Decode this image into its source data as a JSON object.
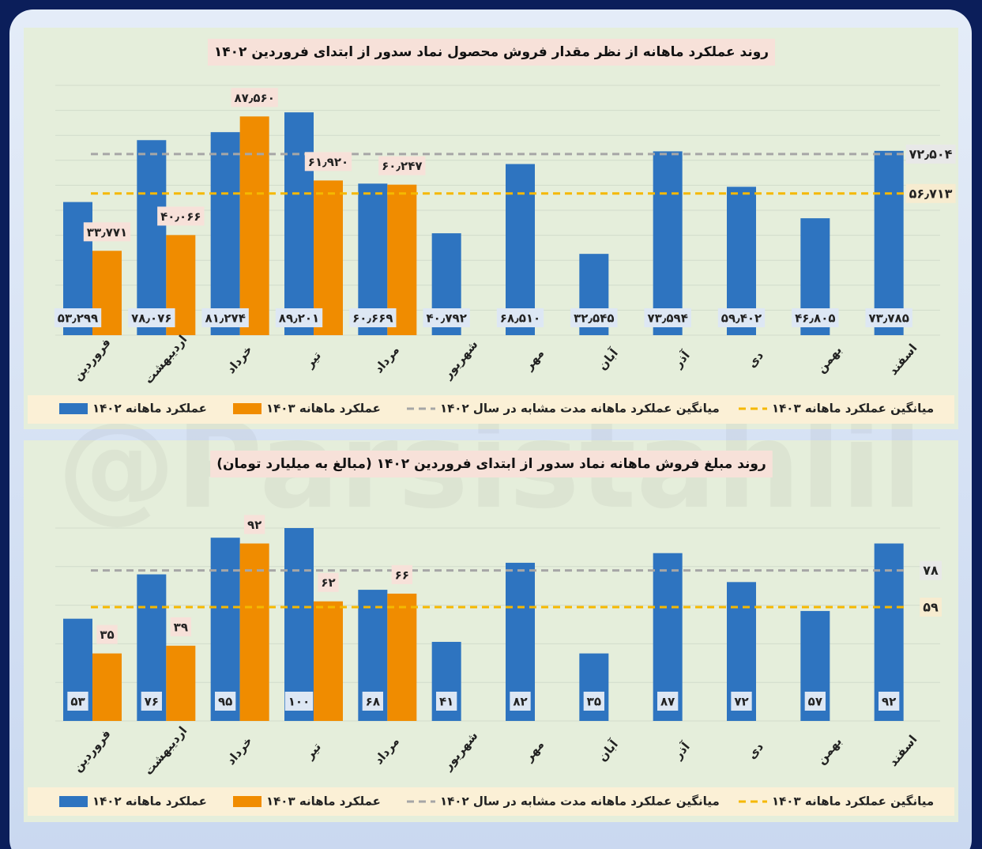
{
  "watermark": "@Parsistahlil",
  "chart_data": [
    {
      "type": "bar",
      "title": "روند عملکرد ماهانه از نظر مقدار فروش محصول نماد سدور از ابتدای فروردین ۱۴۰۲",
      "categories": [
        "فروردین",
        "اردیبهشت",
        "خرداد",
        "تیر",
        "مرداد",
        "شهریور",
        "مهر",
        "آبان",
        "آذر",
        "دی",
        "بهمن",
        "اسفند"
      ],
      "series": [
        {
          "name": "عملکرد ماهانه ۱۴۰۲",
          "color": "#2e74c0",
          "values": [
            53.299,
            78.076,
            81.274,
            89.201,
            60.669,
            40.792,
            68.51,
            32.545,
            73.594,
            59.402,
            46.805,
            73.785
          ],
          "value_labels": [
            "۵۳٫۲۹۹",
            "۷۸٫۰۷۶",
            "۸۱٫۲۷۴",
            "۸۹٫۲۰۱",
            "۶۰٫۶۶۹",
            "۴۰٫۷۹۲",
            "۶۸٫۵۱۰",
            "۳۲٫۵۴۵",
            "۷۳٫۵۹۴",
            "۵۹٫۴۰۲",
            "۴۶٫۸۰۵",
            "۷۳٫۷۸۵"
          ]
        },
        {
          "name": "عملکرد ماهانه ۱۴۰۳",
          "color": "#f08c00",
          "values": [
            33.771,
            40.066,
            87.56,
            61.92,
            60.247,
            null,
            null,
            null,
            null,
            null,
            null,
            null
          ],
          "value_labels": [
            "۳۳٫۷۷۱",
            "۴۰٫۰۶۶",
            "۸۷٫۵۶۰",
            "۶۱٫۹۲۰",
            "۶۰٫۲۴۷",
            null,
            null,
            null,
            null,
            null,
            null,
            null
          ]
        }
      ],
      "reference_lines": [
        {
          "name": "میانگین عملکرد ماهانه مدت مشابه در سال ۱۴۰۲",
          "color": "#a6a6a6",
          "value": 72.504,
          "value_label": "۷۲٫۵۰۴"
        },
        {
          "name": "میانگین عملکرد ماهانه ۱۴۰۳",
          "color": "#f5b800",
          "value": 56.713,
          "value_label": "۵۶٫۷۱۳"
        }
      ],
      "ylim": [
        0,
        100
      ],
      "yticks": [
        0,
        10,
        20,
        30,
        40,
        50,
        60,
        70,
        80,
        90,
        100
      ],
      "grid": true
    },
    {
      "type": "bar",
      "title": "روند مبلغ فروش ماهانه نماد سدور از ابتدای فروردین ۱۴۰۲ (مبالغ به میلیارد تومان)",
      "categories": [
        "فروردین",
        "اردیبهشت",
        "خرداد",
        "تیر",
        "مرداد",
        "شهریور",
        "مهر",
        "آبان",
        "آذر",
        "دی",
        "بهمن",
        "اسفند"
      ],
      "series": [
        {
          "name": "عملکرد ماهانه ۱۴۰۲",
          "color": "#2e74c0",
          "values": [
            53,
            76,
            95,
            100,
            68,
            41,
            82,
            35,
            87,
            72,
            57,
            92
          ],
          "value_labels": [
            "۵۳",
            "۷۶",
            "۹۵",
            "۱۰۰",
            "۶۸",
            "۴۱",
            "۸۲",
            "۳۵",
            "۸۷",
            "۷۲",
            "۵۷",
            "۹۲"
          ]
        },
        {
          "name": "عملکرد ماهانه ۱۴۰۳",
          "color": "#f08c00",
          "values": [
            35,
            39,
            92,
            62,
            66,
            null,
            null,
            null,
            null,
            null,
            null,
            null
          ],
          "value_labels": [
            "۳۵",
            "۳۹",
            "۹۲",
            "۶۲",
            "۶۶",
            null,
            null,
            null,
            null,
            null,
            null,
            null
          ]
        }
      ],
      "reference_lines": [
        {
          "name": "میانگین عملکرد ماهانه مدت مشابه در سال ۱۴۰۲",
          "color": "#a6a6a6",
          "value": 78,
          "value_label": "۷۸"
        },
        {
          "name": "میانگین عملکرد ماهانه ۱۴۰۳",
          "color": "#f5b800",
          "value": 59,
          "value_label": "۵۹"
        }
      ],
      "ylim": [
        0,
        100
      ],
      "yticks": [
        0,
        20,
        40,
        60,
        80,
        100
      ],
      "grid": true
    }
  ]
}
